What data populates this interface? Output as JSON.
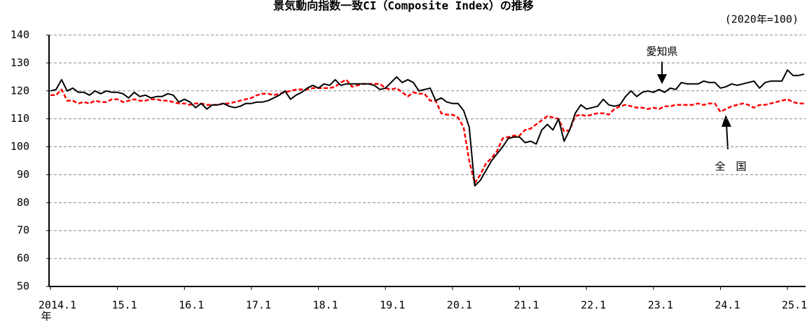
{
  "chart_data": {
    "type": "line",
    "title": "景気動向指数一致CI（Composite Index）の推移",
    "subtitle": "(2020年=100)",
    "x_label": "年",
    "annotations": [
      "愛知県",
      "全　国"
    ],
    "categories": [
      "2014.1",
      null,
      null,
      null,
      null,
      null,
      null,
      null,
      null,
      null,
      null,
      null,
      "15.1",
      null,
      null,
      null,
      null,
      null,
      null,
      null,
      null,
      null,
      null,
      null,
      "16.1",
      null,
      null,
      null,
      null,
      null,
      null,
      null,
      null,
      null,
      null,
      null,
      "17.1",
      null,
      null,
      null,
      null,
      null,
      null,
      null,
      null,
      null,
      null,
      null,
      "18.1",
      null,
      null,
      null,
      null,
      null,
      null,
      null,
      null,
      null,
      null,
      null,
      "19.1",
      null,
      null,
      null,
      null,
      null,
      null,
      null,
      null,
      null,
      null,
      null,
      "20.1",
      null,
      null,
      null,
      null,
      null,
      null,
      null,
      null,
      null,
      null,
      null,
      "21.1",
      null,
      null,
      null,
      null,
      null,
      null,
      null,
      null,
      null,
      null,
      null,
      "22.1",
      null,
      null,
      null,
      null,
      null,
      null,
      null,
      null,
      null,
      null,
      null,
      "23.1",
      null,
      null,
      null,
      null,
      null,
      null,
      null,
      null,
      null,
      null,
      null,
      "24.1",
      null,
      null,
      null,
      null,
      null,
      null,
      null,
      null,
      null,
      null,
      null,
      "25.1",
      null,
      null,
      null
    ],
    "series": [
      {
        "name": "愛知県",
        "color": "#000000",
        "dashed": false,
        "values": [
          120,
          120.5,
          124,
          120,
          121,
          119.5,
          119.5,
          118.5,
          120,
          119,
          120,
          119.5,
          119.5,
          119,
          117.5,
          119.5,
          118,
          118.5,
          117.5,
          118,
          118,
          119,
          118.5,
          116,
          117,
          116,
          114,
          115.5,
          113.5,
          115,
          115,
          115.5,
          114.5,
          114,
          114.5,
          115.5,
          115.5,
          116,
          116,
          116.5,
          117.5,
          118.5,
          120,
          117,
          118.5,
          119.5,
          121,
          122,
          121,
          122.5,
          122,
          124,
          122,
          122.5,
          122.5,
          122.5,
          122.5,
          122.5,
          122,
          120.5,
          121,
          123,
          125,
          123,
          124,
          123,
          120,
          120.5,
          121,
          116.5,
          117.5,
          116,
          115.5,
          115.5,
          113,
          107,
          86,
          88,
          91.5,
          95,
          97.5,
          100,
          103,
          103.5,
          103.5,
          101.5,
          102,
          101,
          106,
          108,
          106,
          110,
          102,
          106,
          112,
          115,
          113.5,
          114,
          114.5,
          117,
          115,
          114.5,
          115,
          118,
          120,
          118,
          119.5,
          120,
          119.5,
          120.5,
          119.5,
          121,
          120.5,
          123,
          122.5,
          122.5,
          122.5,
          123.5,
          123,
          123,
          121,
          121.5,
          122.5,
          122,
          122.5,
          123,
          123.5,
          121,
          123,
          123.5,
          123.5,
          123.5,
          127.5,
          125.5,
          125.5,
          126
        ]
      },
      {
        "name": "全　国",
        "color": "#ff0000",
        "dashed": true,
        "values": [
          118.5,
          118.5,
          120.5,
          116.5,
          116.5,
          115.5,
          116,
          115.5,
          116.5,
          116,
          116,
          117,
          117,
          116,
          116.5,
          117,
          116.5,
          116.5,
          117,
          117,
          116.5,
          116.5,
          116,
          115.5,
          115.5,
          115,
          115.5,
          115.5,
          115,
          115,
          115,
          115.5,
          115.5,
          116,
          116.5,
          117,
          117.5,
          118.5,
          119,
          119,
          118.5,
          119,
          119.5,
          120,
          120.5,
          120.5,
          120.5,
          121,
          121,
          121,
          121,
          121.5,
          123,
          124,
          121.5,
          122,
          122.5,
          122.5,
          122.5,
          122.5,
          121,
          120.5,
          121,
          119.5,
          118,
          119.5,
          119,
          119,
          116.5,
          116.5,
          112,
          111.5,
          111.5,
          110.5,
          107,
          95,
          87,
          90,
          94,
          96,
          98.5,
          103,
          103.5,
          104,
          104,
          106,
          106.5,
          108,
          109.5,
          111,
          110.5,
          110,
          105.5,
          106,
          111,
          111.5,
          111,
          111.5,
          112,
          112,
          111.5,
          113.5,
          114.5,
          115,
          114.5,
          114,
          114,
          113.5,
          114,
          113.5,
          114.5,
          114.5,
          115,
          115,
          115,
          115,
          115.5,
          115,
          115.5,
          115.5,
          112.5,
          113.5,
          114.5,
          115,
          115.5,
          115,
          114,
          115,
          115,
          115.5,
          116,
          116.5,
          117,
          116,
          115.5,
          115.5
        ]
      }
    ],
    "ylim": [
      50,
      140
    ],
    "yticks": [
      50,
      60,
      70,
      80,
      90,
      100,
      110,
      120,
      130,
      140
    ],
    "grid": true
  }
}
